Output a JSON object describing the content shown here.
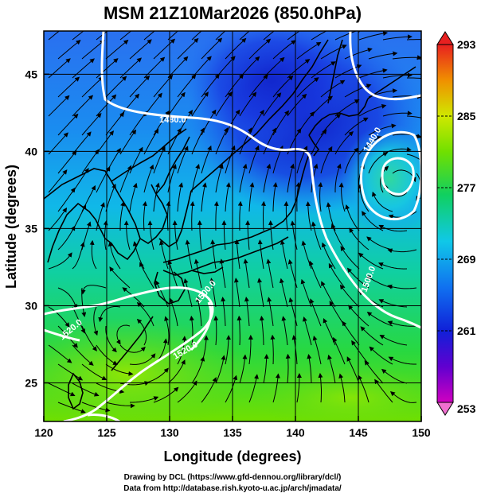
{
  "title": "MSM 21Z10Mar2026 (850.0hPa)",
  "x_axis": {
    "label": "Longitude (degrees)",
    "range": [
      120,
      150
    ],
    "ticks": [
      "120",
      "125",
      "130",
      "135",
      "140",
      "145",
      "150"
    ]
  },
  "y_axis": {
    "label": "Latitude  (degrees)",
    "range": [
      22.5,
      47.8
    ],
    "ticks": [
      "25",
      "30",
      "35",
      "40",
      "45"
    ]
  },
  "colorbar": {
    "ticks": [
      "253",
      "261",
      "269",
      "277",
      "285",
      "293"
    ]
  },
  "contour_labels": [
    "1480.0",
    "1440.0",
    "1500.0",
    "1520.0",
    "1520.0",
    "1500.0"
  ],
  "footer": {
    "line1": "Drawing by DCL (https://www.gfd-dennou.org/library/dcl/)",
    "line2": "Data from http://database.rish.kyoto-u.ac.jp/arch/jmadata/"
  },
  "colors": {
    "cold": "#1a28d8",
    "cool": "#00b0f0",
    "mild": "#10d860",
    "warm": "#80e000",
    "contour": "#ffffff",
    "coast": "#000000"
  }
}
